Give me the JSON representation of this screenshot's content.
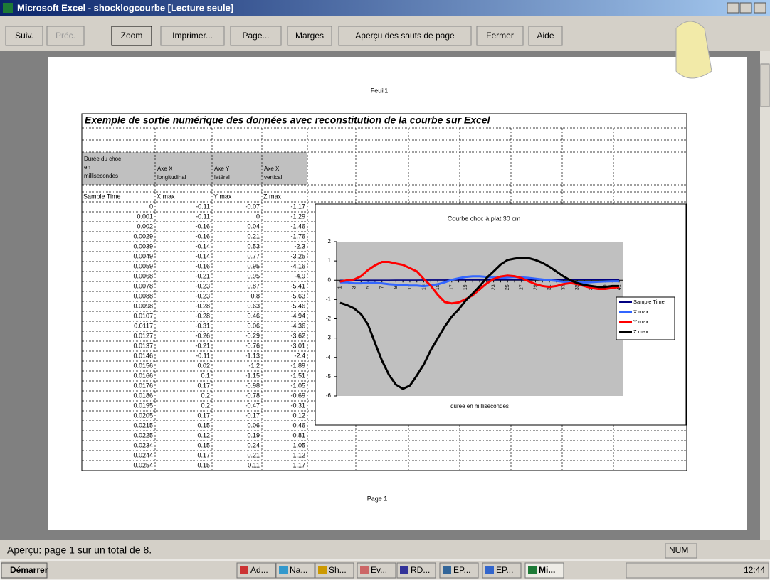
{
  "window": {
    "title": "Microsoft Excel - shocklogcourbe  [Lecture seule]"
  },
  "toolbar": {
    "buttons": [
      "Suiv.",
      "Préc.",
      "Zoom",
      "Imprimer...",
      "Page...",
      "Marges",
      "Aperçu des sauts de page",
      "Fermer",
      "Aide"
    ]
  },
  "page": {
    "header": "Feuil1",
    "footer": "Page 1"
  },
  "table": {
    "title": "Exemple de sortie numérique des données avec reconstitution de la courbe sur Excel",
    "headers": [
      "Durée du choc en millisecondes",
      "Axe X longitudinal",
      "Axe Y latéral",
      "Axe X vertical"
    ],
    "columns": [
      "Sample Time",
      "X max",
      "Y max",
      "Z max"
    ],
    "rows": [
      [
        0,
        -0.11,
        -0.07,
        -1.17
      ],
      [
        0.001,
        -0.11,
        0,
        -1.29
      ],
      [
        0.002,
        -0.16,
        0.04,
        -1.46
      ],
      [
        0.0029,
        -0.16,
        0.21,
        -1.76
      ],
      [
        0.0039,
        -0.14,
        0.53,
        -2.3
      ],
      [
        0.0049,
        -0.14,
        0.77,
        -3.25
      ],
      [
        0.0059,
        -0.16,
        0.95,
        -4.16
      ],
      [
        0.0068,
        -0.21,
        0.95,
        -4.9
      ],
      [
        0.0078,
        -0.23,
        0.87,
        -5.41
      ],
      [
        0.0088,
        -0.23,
        0.8,
        -5.63
      ],
      [
        0.0098,
        -0.28,
        0.63,
        -5.46
      ],
      [
        0.0107,
        -0.28,
        0.46,
        -4.94
      ],
      [
        0.0117,
        -0.31,
        0.06,
        -4.36
      ],
      [
        0.0127,
        -0.26,
        -0.29,
        -3.62
      ],
      [
        0.0137,
        -0.21,
        -0.76,
        -3.01
      ],
      [
        0.0146,
        -0.11,
        -1.13,
        -2.4
      ],
      [
        0.0156,
        0.02,
        -1.2,
        -1.89
      ],
      [
        0.0166,
        0.1,
        -1.15,
        -1.51
      ],
      [
        0.0176,
        0.17,
        -0.98,
        -1.05
      ],
      [
        0.0186,
        0.2,
        -0.78,
        -0.69
      ],
      [
        0.0195,
        0.2,
        -0.47,
        -0.31
      ],
      [
        0.0205,
        0.17,
        -0.17,
        0.12
      ],
      [
        0.0215,
        0.15,
        0.06,
        0.46
      ],
      [
        0.0225,
        0.12,
        0.19,
        0.81
      ],
      [
        0.0234,
        0.15,
        0.24,
        1.05
      ],
      [
        0.0244,
        0.17,
        0.21,
        1.12
      ],
      [
        0.0254,
        0.15,
        0.11,
        1.17
      ]
    ]
  },
  "chart": {
    "type": "line",
    "title": "Courbe choc à plat 30 cm",
    "x_label": "durée en millisecondes",
    "categories": [
      1,
      null,
      3,
      null,
      5,
      null,
      7,
      null,
      9,
      null,
      11,
      null,
      13,
      null,
      15,
      null,
      17,
      null,
      19,
      null,
      21,
      null,
      23,
      null,
      25,
      null,
      27,
      null,
      29,
      null,
      31,
      null,
      33,
      null,
      35,
      null,
      37,
      null,
      39,
      null,
      41
    ],
    "ylim": [
      -6,
      2
    ],
    "yticks": [
      -6,
      -5,
      -4,
      -3,
      -2,
      -1,
      0,
      1,
      2
    ],
    "legend": "right",
    "series": [
      {
        "name": "Sample Time",
        "color": "#000080",
        "values": [
          0,
          0.001,
          0.002,
          0.0029,
          0.0039,
          0.0049,
          0.0059,
          0.0068,
          0.0078,
          0.0088,
          0.0098,
          0.0107,
          0.0117,
          0.0127,
          0.0137,
          0.0146,
          0.0156,
          0.0166,
          0.0176,
          0.0186,
          0.0195,
          0.0205,
          0.0215,
          0.0225,
          0.0234,
          0.0244,
          0.0254,
          0.0264,
          0.0273,
          0.0283,
          0.0293,
          0.0303,
          0.0313,
          0.0322,
          0.0332,
          0.0342,
          0.0352,
          0.0361,
          0.0371,
          0.0381,
          0.0391
        ]
      },
      {
        "name": "X max",
        "color": "#3366ff",
        "values": [
          -0.11,
          -0.11,
          -0.16,
          -0.16,
          -0.14,
          -0.14,
          -0.16,
          -0.21,
          -0.23,
          -0.23,
          -0.28,
          -0.28,
          -0.31,
          -0.26,
          -0.21,
          -0.11,
          0.02,
          0.1,
          0.17,
          0.2,
          0.2,
          0.17,
          0.15,
          0.12,
          0.15,
          0.17,
          0.15,
          0.12,
          0.08,
          0.04,
          0,
          -0.04,
          -0.08,
          -0.1,
          -0.12,
          -0.12,
          -0.1,
          -0.08,
          -0.06,
          -0.05,
          -0.05
        ]
      },
      {
        "name": "Y max",
        "color": "#ff0000",
        "values": [
          -0.07,
          0,
          0.04,
          0.21,
          0.53,
          0.77,
          0.95,
          0.95,
          0.87,
          0.8,
          0.63,
          0.46,
          0.06,
          -0.29,
          -0.76,
          -1.13,
          -1.2,
          -1.15,
          -0.98,
          -0.78,
          -0.47,
          -0.17,
          0.06,
          0.19,
          0.24,
          0.21,
          0.11,
          -0.05,
          -0.2,
          -0.3,
          -0.35,
          -0.3,
          -0.2,
          -0.15,
          -0.2,
          -0.3,
          -0.4,
          -0.45,
          -0.45,
          -0.4,
          -0.35
        ]
      },
      {
        "name": "Z max",
        "color": "#000000",
        "values": [
          -1.17,
          -1.29,
          -1.46,
          -1.76,
          -2.3,
          -3.25,
          -4.16,
          -4.9,
          -5.41,
          -5.63,
          -5.46,
          -4.94,
          -4.36,
          -3.62,
          -3.01,
          -2.4,
          -1.89,
          -1.51,
          -1.05,
          -0.69,
          -0.31,
          0.12,
          0.46,
          0.81,
          1.05,
          1.12,
          1.17,
          1.15,
          1.05,
          0.9,
          0.7,
          0.45,
          0.2,
          0,
          -0.15,
          -0.25,
          -0.3,
          -0.35,
          -0.35,
          -0.3,
          -0.3
        ]
      }
    ]
  },
  "status": {
    "text": "Aperçu: page 1 sur un total de 8.",
    "indicator": "NUM"
  },
  "taskbar": {
    "start": "Démarrer",
    "items": [
      "Ad...",
      "Na...",
      "Sh...",
      "Ev...",
      "RD...",
      "EP...",
      "EP...",
      "Mi..."
    ],
    "clock": "12:44"
  }
}
